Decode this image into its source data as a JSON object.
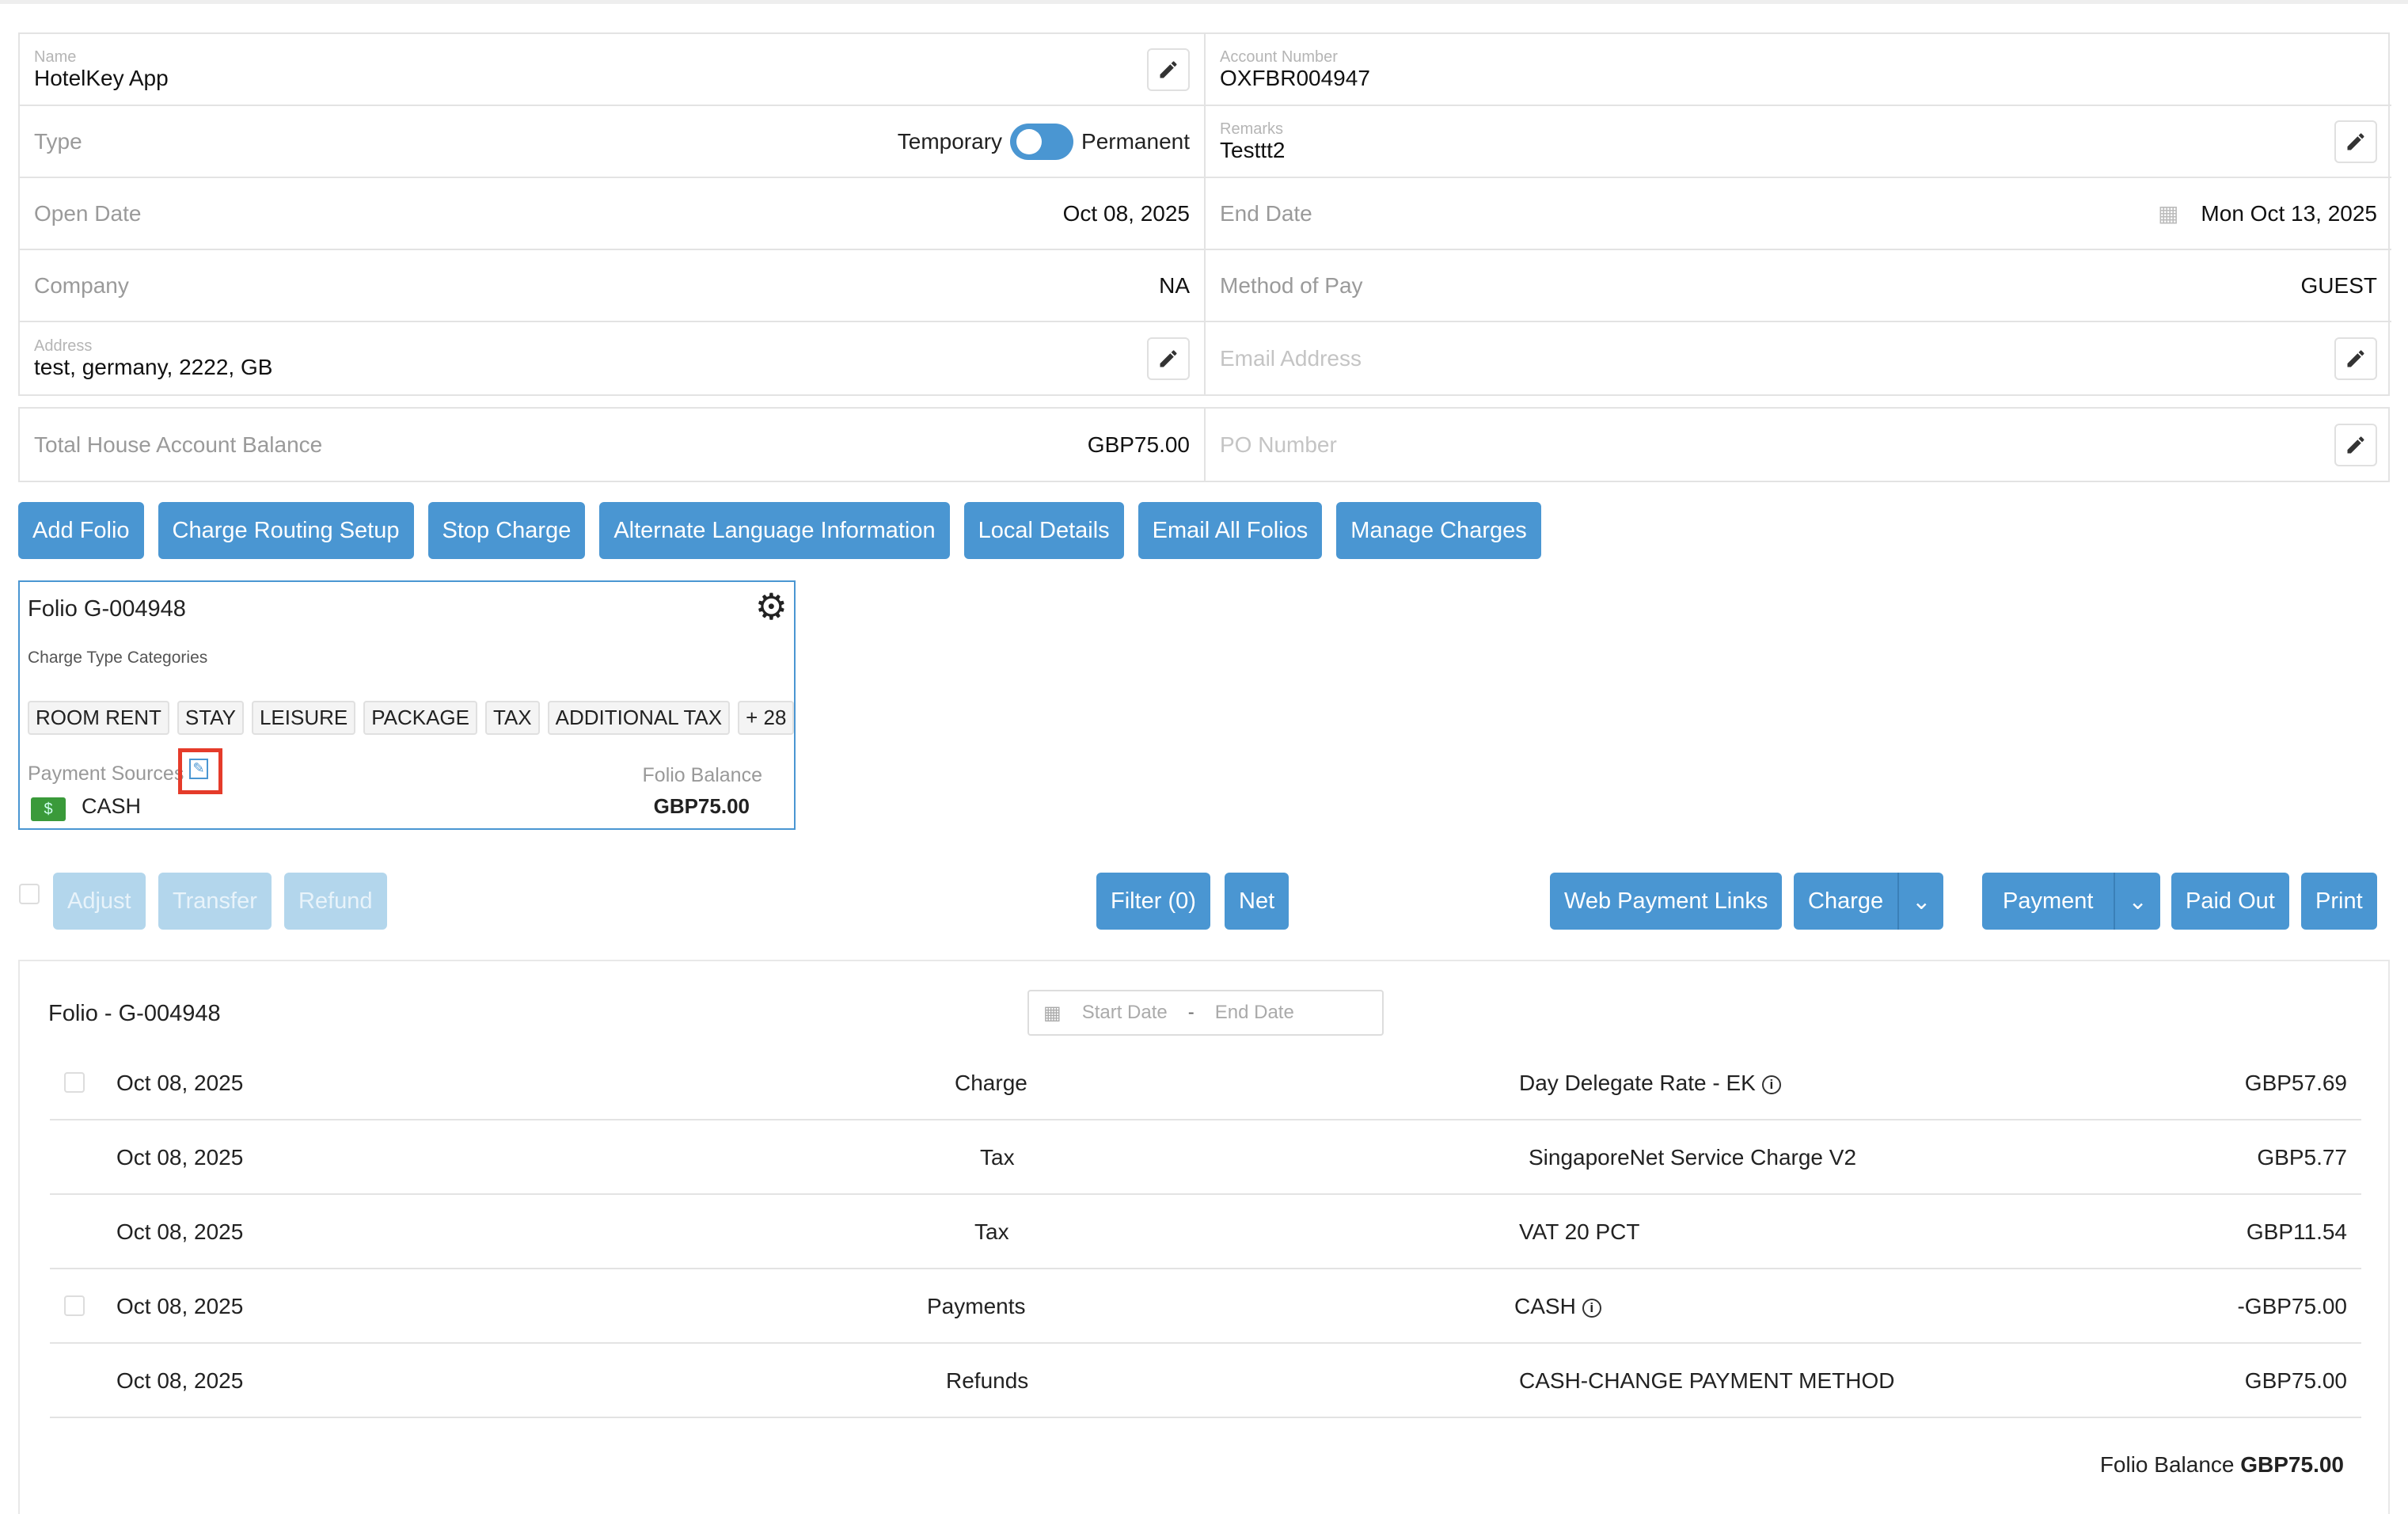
{
  "account": {
    "name_label": "Name",
    "name": "HotelKey App",
    "account_number_label": "Account Number",
    "account_number": "OXFBR004947",
    "type_label": "Type",
    "type_left": "Temporary",
    "type_right": "Permanent",
    "type_is_permanent": true,
    "remarks_label": "Remarks",
    "remarks": "Testtt2",
    "open_date_label": "Open Date",
    "open_date": "Oct 08, 2025",
    "end_date_label": "End Date",
    "end_date": "Mon Oct 13, 2025",
    "company_label": "Company",
    "company": "NA",
    "method_of_pay_label": "Method of Pay",
    "method_of_pay": "GUEST",
    "address_label": "Address",
    "address": "test, germany, 2222, GB",
    "email_placeholder": "Email Address",
    "balance_label": "Total House Account Balance",
    "balance": "GBP75.00",
    "po_placeholder": "PO Number"
  },
  "buttons": [
    "Add Folio",
    "Charge Routing Setup",
    "Stop Charge",
    "Alternate Language Information",
    "Local Details",
    "Email All Folios",
    "Manage Charges"
  ],
  "folio_card": {
    "title": "Folio G-004948",
    "categories_label": "Charge Type Categories",
    "categories": [
      "ROOM RENT",
      "STAY",
      "LEISURE",
      "PACKAGE",
      "TAX",
      "ADDITIONAL TAX",
      "+ 28"
    ],
    "payment_sources_label": "Payment Sources",
    "payment_source": "CASH",
    "balance_label": "Folio Balance",
    "balance": "GBP75.00"
  },
  "actions": {
    "adjust": "Adjust",
    "transfer": "Transfer",
    "refund": "Refund",
    "filter": "Filter (0)",
    "net": "Net",
    "web_payment_links": "Web Payment Links",
    "charge": "Charge",
    "payment": "Payment",
    "paid_out": "Paid Out",
    "print": "Print"
  },
  "ledger": {
    "title": "Folio - G-004948",
    "start_placeholder": "Start Date",
    "separator": "-",
    "end_placeholder": "End Date",
    "rows": [
      {
        "date": "Oct 08, 2025",
        "type": "Charge",
        "description": "Day Delegate Rate - EK",
        "amount": "GBP57.69"
      },
      {
        "date": "Oct 08, 2025",
        "type": "Tax",
        "description": "SingaporeNet Service Charge V2",
        "amount": "GBP5.77"
      },
      {
        "date": "Oct 08, 2025",
        "type": "Tax",
        "description": "VAT 20 PCT",
        "amount": "GBP11.54"
      },
      {
        "date": "Oct 08, 2025",
        "type": "Payments",
        "description": "CASH",
        "amount": "-GBP75.00"
      },
      {
        "date": "Oct 08, 2025",
        "type": "Refunds",
        "description": "CASH-CHANGE PAYMENT METHOD",
        "amount": "GBP75.00"
      }
    ],
    "balance_label": "Folio Balance",
    "balance": "GBP75.00"
  },
  "colors": {
    "primary": "#4a96d2",
    "highlight": "#e53b2a"
  }
}
